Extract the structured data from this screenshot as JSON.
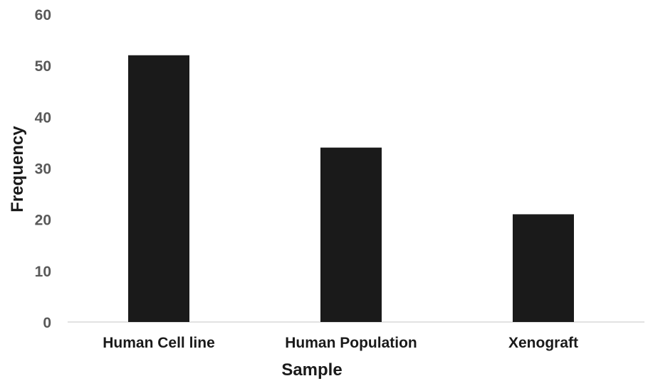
{
  "chart_data": {
    "type": "bar",
    "title": "",
    "xlabel": "Sample",
    "ylabel": "Frequency",
    "categories": [
      "Human Cell line",
      "Human Population",
      "Xenograft"
    ],
    "values": [
      52,
      34,
      21
    ],
    "ylim": [
      0,
      60
    ],
    "yticks": [
      "0",
      "10",
      "20",
      "30",
      "40",
      "50",
      "60"
    ],
    "grid": false,
    "legend": "none",
    "bar_color": "#1a1a1a",
    "axis_color": "#d9d9d9"
  }
}
